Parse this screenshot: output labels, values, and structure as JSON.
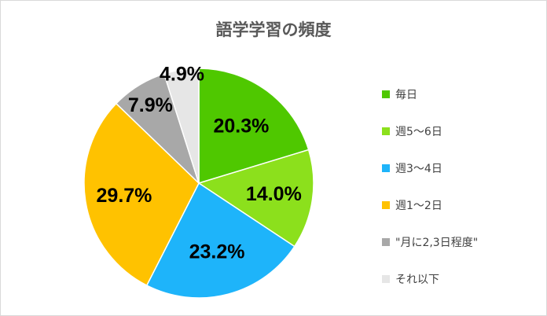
{
  "chart_data": {
    "type": "pie",
    "title": "語学学習の頻度",
    "categories": [
      "毎日",
      "週5～6日",
      "週3～4日",
      "週1～2日",
      "\"月に2,3日程度\"",
      "それ以下"
    ],
    "values": [
      20.3,
      14.0,
      23.2,
      29.7,
      7.9,
      4.9
    ],
    "data_labels": [
      "20.3%",
      "14.0%",
      "23.2%",
      "29.7%",
      "7.9%",
      "4.9%"
    ],
    "colors": [
      "#4FC800",
      "#8CE01C",
      "#1EB4FA",
      "#FFC200",
      "#A8A8A8",
      "#E6E6E6"
    ],
    "legend_position": "right",
    "start_angle_deg": 0,
    "direction": "clockwise"
  }
}
